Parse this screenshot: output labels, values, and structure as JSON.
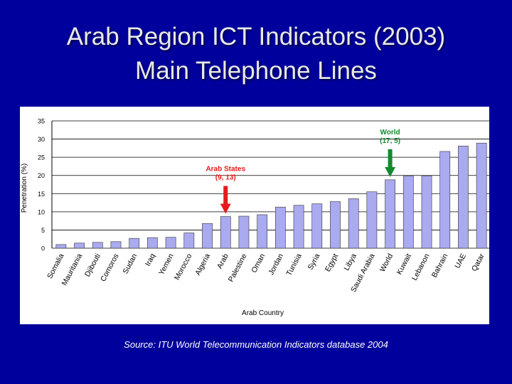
{
  "slide": {
    "title_line1": "Arab Region ICT Indicators (2003)",
    "title_line2": "Main Telephone Lines",
    "source": "Source: ITU World Telecommunication Indicators database 2004"
  },
  "chart_data": {
    "type": "bar",
    "title": "",
    "xlabel": "Arab Country",
    "ylabel": "Penetration (%)",
    "ylim": [
      0,
      35
    ],
    "yticks": [
      "0",
      "5",
      "10",
      "15",
      "20",
      "25",
      "30",
      "35"
    ],
    "grid": true,
    "categories": [
      "Somalia",
      "Mauritania",
      "Djibouti",
      "Comoros",
      "Sudan",
      "Iraq",
      "Yemen",
      "Morocco",
      "Algeria",
      "Arab",
      "Palestine",
      "Oman",
      "Jordan",
      "Tunisia",
      "Syria",
      "Egypt",
      "Libya",
      "Saudi Arabia",
      "World",
      "Kuwait",
      "Lebanon",
      "Bahrain",
      "UAE",
      "Qatar"
    ],
    "values": [
      1.0,
      1.4,
      1.6,
      1.8,
      2.7,
      2.9,
      3.0,
      4.2,
      6.8,
      8.7,
      8.8,
      9.2,
      11.3,
      11.8,
      12.2,
      12.8,
      13.6,
      15.5,
      18.8,
      19.9,
      19.9,
      26.6,
      28.1,
      28.9
    ],
    "colors": {
      "bar": "#aaaaf0",
      "bar_edge": "#333333",
      "arrow_red": "#e41c1c",
      "arrow_green": "#128a2e",
      "annot_red": "#e41c1c",
      "annot_green": "#128a2e"
    },
    "annotations": [
      {
        "category": "Arab",
        "text_line1": "Arab States",
        "text_line2": "(9, 13)",
        "color": "red"
      },
      {
        "category": "World",
        "text_line1": "World",
        "text_line2": "(17, 5)",
        "color": "green"
      }
    ]
  }
}
